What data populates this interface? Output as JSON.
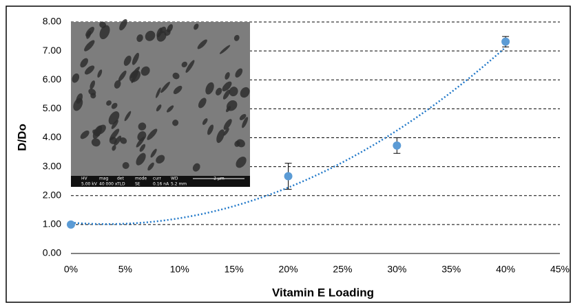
{
  "chart_data": {
    "type": "scatter",
    "x_label": "Vitamin E Loading",
    "y_label": "D/Do",
    "x": [
      0,
      20,
      30,
      40
    ],
    "series": [
      {
        "color": "#5b9bd5",
        "values": [
          1.0,
          2.67,
          3.73,
          7.32
        ],
        "errors": [
          null,
          0.45,
          0.27,
          0.18
        ]
      }
    ],
    "trendline": {
      "type": "polynomial",
      "order": 2,
      "color": "#1f77c8"
    },
    "xlim": [
      0,
      45
    ],
    "xticks": [
      {
        "value": 0,
        "label": "0%"
      },
      {
        "value": 5,
        "label": "5%"
      },
      {
        "value": 10,
        "label": "10%"
      },
      {
        "value": 15,
        "label": "15%"
      },
      {
        "value": 20,
        "label": "20%"
      },
      {
        "value": 25,
        "label": "25%"
      },
      {
        "value": 30,
        "label": "30%"
      },
      {
        "value": 35,
        "label": "35%"
      },
      {
        "value": 40,
        "label": "40%"
      },
      {
        "value": 45,
        "label": "45%"
      }
    ],
    "ylim": [
      0,
      8
    ],
    "yticks": [
      {
        "value": 0,
        "label": "0.00"
      },
      {
        "value": 1,
        "label": "1.00"
      },
      {
        "value": 2,
        "label": "2.00"
      },
      {
        "value": 3,
        "label": "3.00"
      },
      {
        "value": 4,
        "label": "4.00"
      },
      {
        "value": 5,
        "label": "5.00"
      },
      {
        "value": 6,
        "label": "6.00"
      },
      {
        "value": 7,
        "label": "7.00"
      },
      {
        "value": 8,
        "label": "8.00"
      }
    ],
    "grid": true,
    "inset": {
      "info_labels": [
        "HV",
        "mag",
        "det",
        "mode",
        "curr",
        "WD"
      ],
      "info_values": [
        "5.00 kV",
        "40 000 x",
        "TLD",
        "SE",
        "0.16 nA",
        "5.2 mm"
      ],
      "scale_bar": "2 µm"
    }
  }
}
